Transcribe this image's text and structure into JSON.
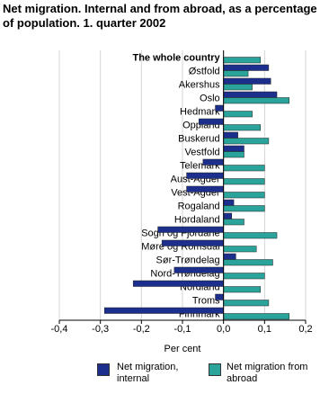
{
  "chart_data": {
    "type": "hbar",
    "title": "Net migration. Internal and from abroad, as a percentage of population. 1. quarter 2002",
    "xlabel": "Per cent",
    "categories": [
      "The whole country",
      "Østfold",
      "Akershus",
      "Oslo",
      "Hedmark",
      "Oppland",
      "Buskerud",
      "Vestfold",
      "Telemark",
      "Aust-Agder",
      "Vest-Agder",
      "Rogaland",
      "Hordaland",
      "Sogn og Fjordane",
      "Møre og Romsdal",
      "Sør-Trøndelag",
      "Nord-Trøndelag",
      "Nordland",
      "Troms",
      "Finnmark"
    ],
    "series": [
      {
        "name": "Net migration, internal",
        "color": "#1c2f8c",
        "values": [
          0,
          0.11,
          0.115,
          0.13,
          -0.02,
          -0.06,
          0.035,
          0.05,
          -0.05,
          -0.09,
          -0.09,
          0.025,
          0.02,
          -0.16,
          -0.15,
          0.03,
          -0.12,
          -0.22,
          -0.02,
          -0.29
        ]
      },
      {
        "name": "Net migration from abroad",
        "color": "#2aa39b",
        "values": [
          0.09,
          0.06,
          0.07,
          0.16,
          0.07,
          0.09,
          0.11,
          0.05,
          0.1,
          0.1,
          0.1,
          0.1,
          0.05,
          0.13,
          0.08,
          0.12,
          0.1,
          0.09,
          0.11,
          0.16
        ]
      }
    ],
    "xlim": [
      -0.4,
      0.2
    ],
    "xticks": [
      {
        "value": -0.4,
        "label": "-0,4"
      },
      {
        "value": -0.3,
        "label": "-0,3"
      },
      {
        "value": -0.2,
        "label": "-0,2"
      },
      {
        "value": -0.1,
        "label": "-0,1"
      },
      {
        "value": 0,
        "label": "0,0"
      },
      {
        "value": 0.1,
        "label": "0,1"
      },
      {
        "value": 0.2,
        "label": "0,2"
      }
    ],
    "grid": true
  }
}
